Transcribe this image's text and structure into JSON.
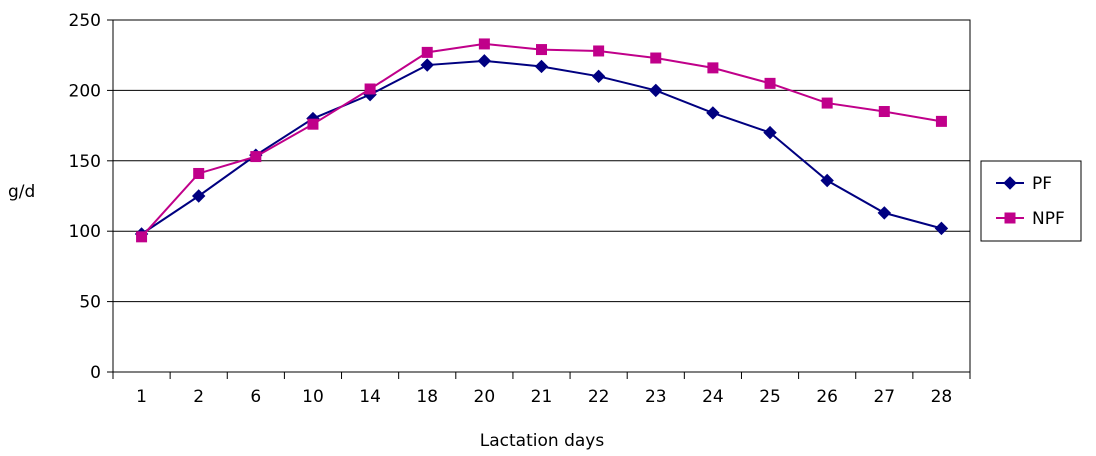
{
  "chart_data": {
    "type": "line",
    "title": "",
    "xlabel": "Lactation days",
    "ylabel": "g/d",
    "categories": [
      "1",
      "2",
      "6",
      "10",
      "14",
      "18",
      "20",
      "21",
      "22",
      "23",
      "24",
      "25",
      "26",
      "27",
      "28"
    ],
    "ylim": [
      0,
      250
    ],
    "yticks": [
      "0",
      "50",
      "100",
      "150",
      "200",
      "250"
    ],
    "grid": "horizontal",
    "legend_position": "right",
    "series": [
      {
        "name": "PF",
        "color": "#000080",
        "marker": "diamond",
        "values": [
          98,
          125,
          154,
          180,
          197,
          218,
          221,
          217,
          210,
          200,
          184,
          170,
          136,
          113,
          102
        ]
      },
      {
        "name": "NPF",
        "color": "#c0008a",
        "marker": "square",
        "values": [
          96,
          141,
          153,
          176,
          201,
          227,
          233,
          229,
          228,
          223,
          216,
          205,
          191,
          185,
          178
        ]
      }
    ]
  }
}
